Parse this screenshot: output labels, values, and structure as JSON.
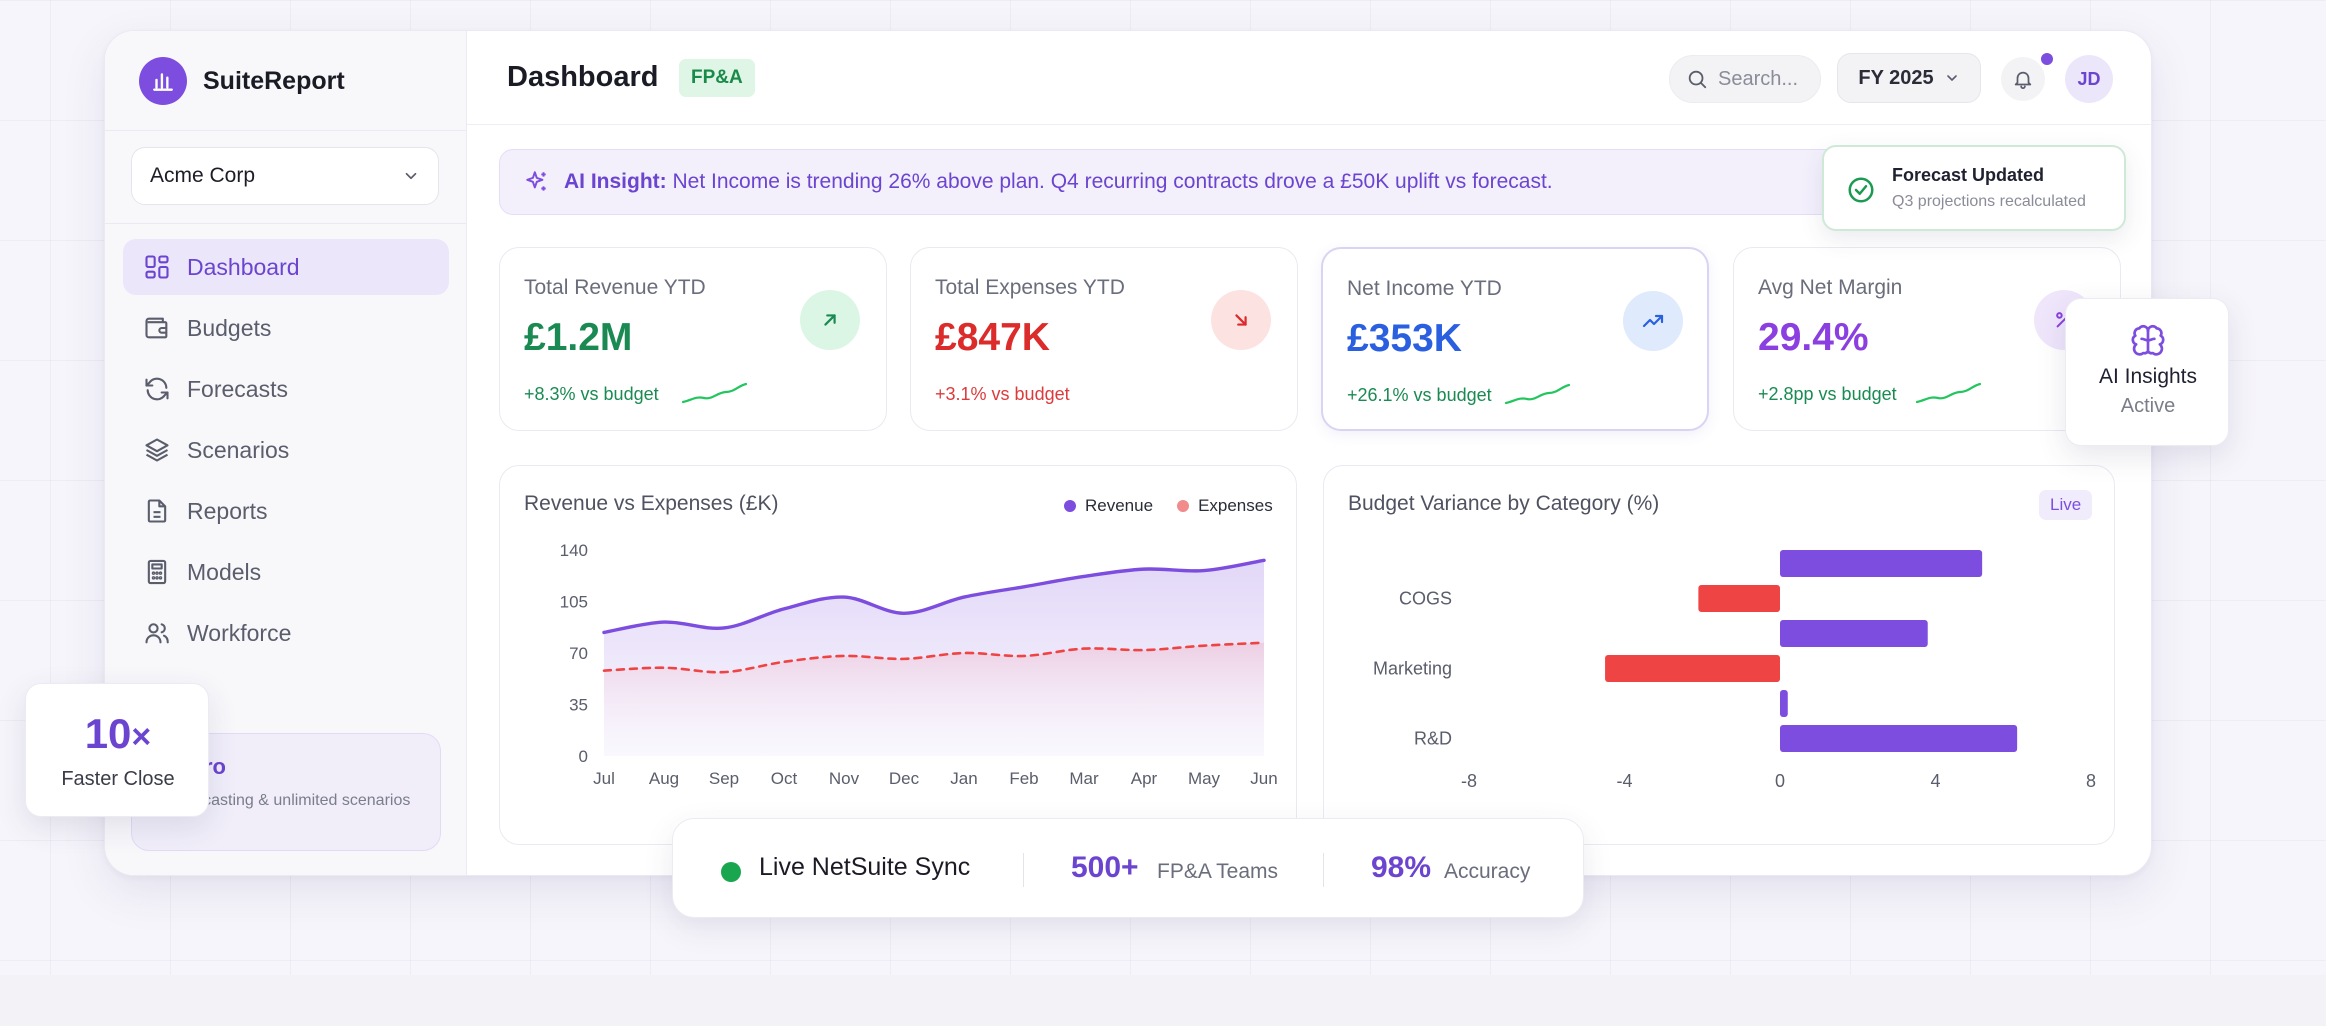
{
  "app": {
    "name": "SuiteReport"
  },
  "sidebar": {
    "org": "Acme Corp",
    "items": [
      {
        "label": "Dashboard",
        "icon": "grid-icon",
        "active": true
      },
      {
        "label": "Budgets",
        "icon": "wallet-icon",
        "active": false
      },
      {
        "label": "Forecasts",
        "icon": "refresh-icon",
        "active": false
      },
      {
        "label": "Scenarios",
        "icon": "layers-icon",
        "active": false
      },
      {
        "label": "Reports",
        "icon": "document-icon",
        "active": false
      },
      {
        "label": "Models",
        "icon": "calculator-icon",
        "active": false
      },
      {
        "label": "Workforce",
        "icon": "users-icon",
        "active": false
      }
    ],
    "promo": {
      "title": "ro",
      "desc": "AI forecasting & unlimited scenarios"
    }
  },
  "header": {
    "title": "Dashboard",
    "tag": "FP&A",
    "search_placeholder": "Search...",
    "fiscal_year": "FY 2025",
    "avatar_initials": "JD"
  },
  "insight": {
    "label": "AI Insight:",
    "text": "Net Income is trending 26% above plan. Q4 recurring contracts drove a £50K uplift vs forecast."
  },
  "kpis": [
    {
      "label": "Total Revenue YTD",
      "value": "£1.2M",
      "delta": "+8.3% vs budget",
      "color": "#1a8a52",
      "delta_color": "#1a8a52",
      "icon": "arrow-up-right-icon",
      "icon_bg": "#dcf6e6"
    },
    {
      "label": "Total Expenses YTD",
      "value": "£847K",
      "delta": "+3.1% vs budget",
      "color": "#dc2b2b",
      "delta_color": "#dc3b3b",
      "icon": "arrow-down-right-icon",
      "icon_bg": "#fde2e2"
    },
    {
      "label": "Net Income YTD",
      "value": "£353K",
      "delta": "+26.1% vs budget",
      "color": "#2a5fe0",
      "delta_color": "#1a8a52",
      "icon": "trending-up-icon",
      "icon_bg": "#dfeafd"
    },
    {
      "label": "Avg Net Margin",
      "value": "29.4%",
      "delta": "+2.8pp vs budget",
      "color": "#8b3fe0",
      "delta_color": "#1a8a52",
      "icon": "percent-icon",
      "icon_bg": "#efe6fc"
    }
  ],
  "revenue_chart": {
    "title": "Revenue vs Expenses (£K)",
    "legend_revenue": "Revenue",
    "legend_expenses": "Expenses"
  },
  "variance_chart": {
    "title": "Budget Variance by Category (%)",
    "badge": "Live"
  },
  "chart_data": [
    {
      "type": "area",
      "title": "Revenue vs Expenses (£K)",
      "categories": [
        "Jul",
        "Aug",
        "Sep",
        "Oct",
        "Nov",
        "Dec",
        "Jan",
        "Feb",
        "Mar",
        "Apr",
        "May",
        "Jun"
      ],
      "series": [
        {
          "name": "Revenue",
          "values": [
            84,
            91,
            87,
            100,
            108,
            97,
            108,
            115,
            122,
            127,
            126,
            133
          ],
          "color": "#7c4ddf"
        },
        {
          "name": "Expenses",
          "values": [
            58,
            60,
            57,
            64,
            68,
            66,
            70,
            68,
            73,
            72,
            75,
            77
          ],
          "color": "#ef4444"
        }
      ],
      "ylim": [
        0,
        140
      ],
      "yticks": [
        0,
        35,
        70,
        105,
        140
      ],
      "legend": "top-right",
      "grid": false
    },
    {
      "type": "bar",
      "orientation": "horizontal",
      "title": "Budget Variance by Category (%)",
      "rows": [
        {
          "value": 5.2,
          "color": "#7c4ddf"
        },
        {
          "label": "COGS",
          "value": -2.1,
          "color": "#ef4444"
        },
        {
          "value": 3.8,
          "color": "#7c4ddf"
        },
        {
          "label": "Marketing",
          "value": -4.5,
          "color": "#ef4444"
        },
        {
          "value": 0.2,
          "color": "#7c4ddf"
        },
        {
          "label": "R&D",
          "value": 6.1,
          "color": "#7c4ddf"
        }
      ],
      "xlim": [
        -8,
        8
      ],
      "xticks": [
        -8,
        -4,
        0,
        4,
        8
      ],
      "grid": false
    }
  ],
  "toast": {
    "title": "Forecast Updated",
    "subtitle": "Q3 projections recalculated"
  },
  "ai_float": {
    "title": "AI Insights",
    "subtitle": "Active"
  },
  "faster": {
    "big": "10",
    "suffix": "×",
    "label": "Faster Close"
  },
  "stats_bar": {
    "sync_label": "Live NetSuite Sync",
    "teams_value": "500+",
    "teams_label": "FP&A Teams",
    "accuracy_value": "98%",
    "accuracy_label": "Accuracy"
  }
}
